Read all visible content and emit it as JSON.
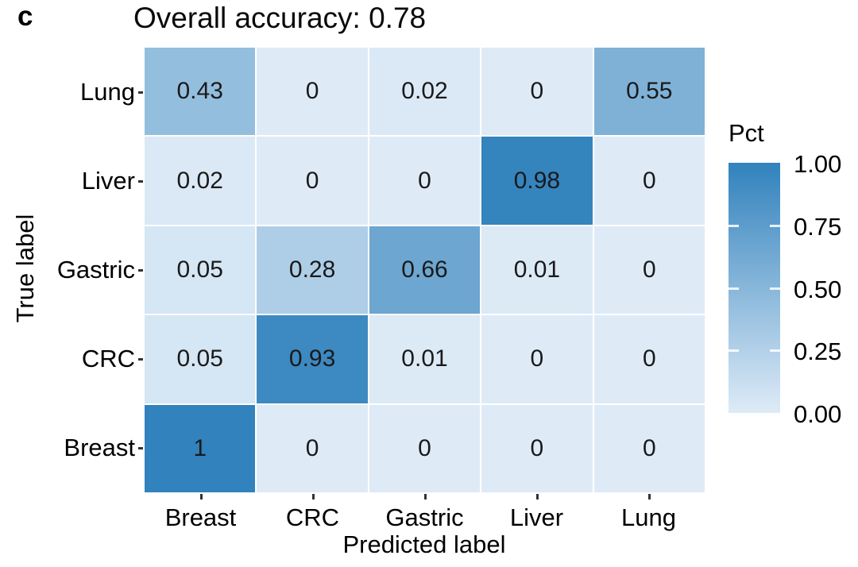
{
  "panel_label": "c",
  "title": "Overall accuracy: 0.78",
  "chart_data": {
    "type": "heatmap",
    "subtype": "confusion-matrix",
    "title": "Overall accuracy: 0.78",
    "xlabel": "Predicted label",
    "ylabel": "True label",
    "x_categories": [
      "Breast",
      "CRC",
      "Gastric",
      "Liver",
      "Lung"
    ],
    "y_categories_top_to_bottom": [
      "Lung",
      "Liver",
      "Gastric",
      "CRC",
      "Breast"
    ],
    "rows": [
      {
        "label": "Lung",
        "values": [
          0.43,
          0,
          0.02,
          0,
          0.55
        ],
        "display": [
          "0.43",
          "0",
          "0.02",
          "0",
          "0.55"
        ]
      },
      {
        "label": "Liver",
        "values": [
          0.02,
          0,
          0,
          0.98,
          0
        ],
        "display": [
          "0.02",
          "0",
          "0",
          "0.98",
          "0"
        ]
      },
      {
        "label": "Gastric",
        "values": [
          0.05,
          0.28,
          0.66,
          0.01,
          0
        ],
        "display": [
          "0.05",
          "0.28",
          "0.66",
          "0.01",
          "0"
        ]
      },
      {
        "label": "CRC",
        "values": [
          0.05,
          0.93,
          0.01,
          0,
          0
        ],
        "display": [
          "0.05",
          "0.93",
          "0.01",
          "0",
          "0"
        ]
      },
      {
        "label": "Breast",
        "values": [
          1,
          0,
          0,
          0,
          0
        ],
        "display": [
          "1",
          "0",
          "0",
          "0",
          "0"
        ]
      }
    ],
    "color_scale": {
      "low": "#DEEBF7",
      "high": "#3182BD",
      "domain": [
        0,
        1
      ]
    },
    "legend": {
      "title": "Pct",
      "position": "right",
      "tick_labels": [
        "1.00",
        "0.75",
        "0.50",
        "0.25",
        "0.00"
      ],
      "tick_values": [
        1.0,
        0.75,
        0.5,
        0.25,
        0.0
      ],
      "notch_values": [
        0.75,
        0.5,
        0.25
      ]
    },
    "grid": false
  },
  "colors": {
    "background": "#ffffff",
    "cell_text": "#1a1a1a",
    "axis_text": "#000000",
    "gradient_low": "#DEEBF7",
    "gradient_high": "#3182BD"
  }
}
